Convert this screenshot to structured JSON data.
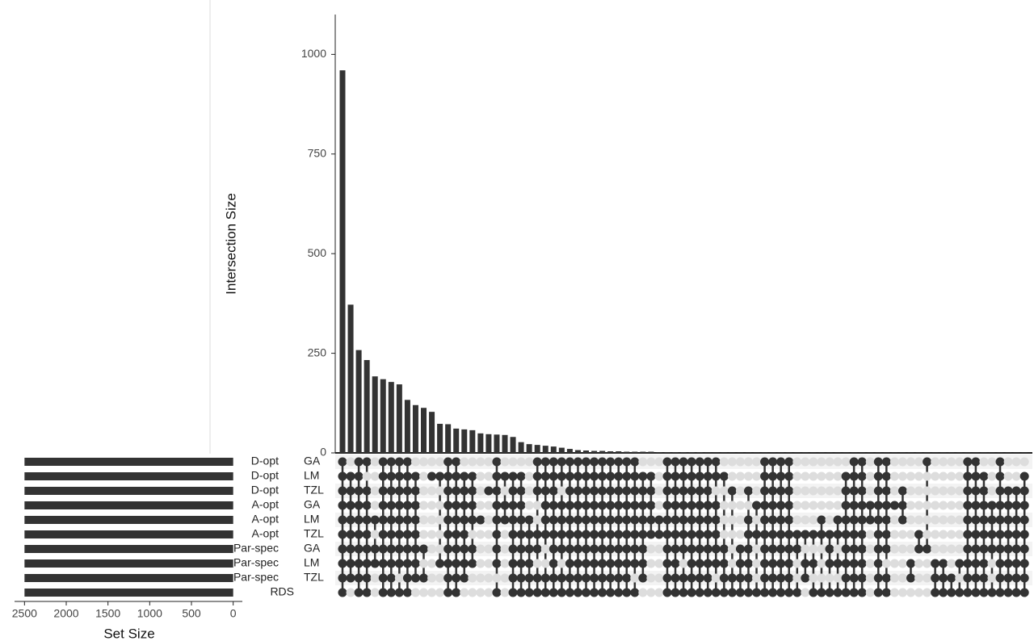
{
  "chart_data": {
    "type": "upset",
    "y_label": "Intersection Size",
    "x_label": "Set Size",
    "bar_color": "#333333",
    "empty_color": "#dddddd",
    "ylim": [
      0,
      1100
    ],
    "yticks": [
      0,
      250,
      500,
      750,
      1000
    ],
    "xlim": [
      -100,
      2600
    ],
    "xticks": [
      2500,
      2000,
      1500,
      1000,
      500,
      0
    ],
    "sets": [
      {
        "name": "D-opt",
        "algo": "GA",
        "size": 2500
      },
      {
        "name": "D-opt",
        "algo": "LM",
        "size": 2500
      },
      {
        "name": "D-opt",
        "algo": "TZL",
        "size": 2500
      },
      {
        "name": "A-opt",
        "algo": "GA",
        "size": 2500
      },
      {
        "name": "A-opt",
        "algo": "LM",
        "size": 2500
      },
      {
        "name": "A-opt",
        "algo": "TZL",
        "size": 2500
      },
      {
        "name": "Par-spec",
        "algo": "GA",
        "size": 2500
      },
      {
        "name": "Par-spec",
        "algo": "LM",
        "size": 2500
      },
      {
        "name": "Par-spec",
        "algo": "TZL",
        "size": 2500
      },
      {
        "name": "RDS",
        "size": 2500
      }
    ],
    "sizes": [
      960,
      372,
      258,
      233,
      192,
      185,
      178,
      172,
      133,
      120,
      113,
      103,
      73,
      72,
      61,
      59,
      57,
      49,
      47,
      46,
      45,
      40,
      27,
      22,
      20,
      18,
      16,
      13,
      10,
      7,
      6,
      5,
      5,
      4,
      4,
      3,
      3,
      3,
      3,
      2,
      2,
      2,
      2,
      2,
      2,
      1,
      1,
      1,
      1,
      1,
      1,
      1,
      1,
      1,
      1,
      1,
      1,
      1,
      1,
      1,
      1,
      1,
      1,
      1,
      1,
      1,
      1,
      1,
      1,
      1,
      1,
      1,
      1,
      1,
      1,
      1,
      1,
      1,
      1,
      1,
      1,
      1,
      1,
      1,
      1
    ],
    "members": [
      "1111111111",
      "0111111110",
      "1111111111",
      "1011111111",
      "0000101100",
      "1111111111",
      "1111111111",
      "1111111101",
      "1111111111",
      "0111111110",
      "0000001010",
      "0100000000",
      "0100000100",
      "1111111111",
      "1111111111",
      "0111111110",
      "0111101100",
      "0000100000",
      "0010000000",
      "1111111101",
      "0101100000",
      "0111111111",
      "0111111111",
      "0000111111",
      "1110011011",
      "1111110011",
      "1111111111",
      "1101111011",
      "1111111111",
      "1111111111",
      "1111111111",
      "1111111111",
      "1111111111",
      "1111111111",
      "1111111111",
      "1111111111",
      "1111111101",
      "0111111110",
      "0111110000",
      "0000110000",
      "1111111111",
      "1111111111",
      "1111111011",
      "1111111111",
      "1111111111",
      "1111111111",
      "1101111101",
      "0100001111",
      "0010000011",
      "0000001111",
      "0010111111",
      "0001010001",
      "1111111111",
      "1111111111",
      "1111111111",
      "1111111111",
      "0000011001",
      "0000010110",
      "0000010101",
      "0000110001",
      "0000011101",
      "0000110101",
      "0111111111",
      "1111111111",
      "1111111111",
      "0001100000",
      "1111111111",
      "1111111011",
      "0001000000",
      "0011100000",
      "0000000110",
      "0000011000",
      "1000001000",
      "0000000111",
      "0000000111",
      "0000000011",
      "0000000101",
      "1111111111",
      "1111111111",
      "0111111111",
      "0001111001",
      "1111111111",
      "0011111111",
      "0011111111",
      "0111111111"
    ]
  }
}
